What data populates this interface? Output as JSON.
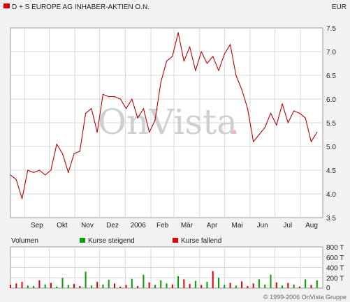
{
  "header": {
    "title": "D + S EUROPE AG INHABER-AKTIEN O.N.",
    "currency": "EUR",
    "legend_swatch_color": "#e00000"
  },
  "watermark": "OnVista",
  "copyright": "© 1999-2006 OnVista Gruppe",
  "volume_legend": {
    "volume_label": "Volumen",
    "rising_label": "Kurse steigend",
    "falling_label": "Kurse fallend",
    "rising_color": "#00a000",
    "falling_color": "#e00000"
  },
  "chart_data": [
    {
      "type": "line",
      "series": [
        {
          "color": "#c00000",
          "x": [
            "2005-08-15",
            "2005-08-22",
            "2005-08-29",
            "2005-09-05",
            "2005-09-12",
            "2005-09-19",
            "2005-09-26",
            "2005-10-03",
            "2005-10-10",
            "2005-10-17",
            "2005-10-24",
            "2005-10-31",
            "2005-11-07",
            "2005-11-14",
            "2005-11-21",
            "2005-11-28",
            "2005-12-05",
            "2005-12-12",
            "2005-12-19",
            "2005-12-26",
            "2006-01-02",
            "2006-01-09",
            "2006-01-16",
            "2006-01-23",
            "2006-01-30",
            "2006-02-06",
            "2006-02-13",
            "2006-02-20",
            "2006-02-27",
            "2006-03-06",
            "2006-03-13",
            "2006-03-20",
            "2006-03-27",
            "2006-04-03",
            "2006-04-10",
            "2006-04-17",
            "2006-04-24",
            "2006-05-01",
            "2006-05-08",
            "2006-05-15",
            "2006-05-22",
            "2006-05-29",
            "2006-06-05",
            "2006-06-12",
            "2006-06-19",
            "2006-06-26",
            "2006-07-03",
            "2006-07-10",
            "2006-07-17",
            "2006-07-24",
            "2006-07-31",
            "2006-08-07",
            "2006-08-14",
            "2006-08-21"
          ],
          "y": [
            4.4,
            4.3,
            3.9,
            4.5,
            4.45,
            4.5,
            4.4,
            4.5,
            5.05,
            4.85,
            4.45,
            4.85,
            4.9,
            5.7,
            5.8,
            5.3,
            6.1,
            6.05,
            6.05,
            6.0,
            5.8,
            6.0,
            5.6,
            5.8,
            5.3,
            5.55,
            6.35,
            6.8,
            6.9,
            7.4,
            6.8,
            7.1,
            6.6,
            7.0,
            6.75,
            6.9,
            6.6,
            6.95,
            7.15,
            6.5,
            6.2,
            5.8,
            5.1,
            5.25,
            5.4,
            5.7,
            5.45,
            5.9,
            5.5,
            5.75,
            5.7,
            5.6,
            5.1,
            5.3
          ]
        }
      ],
      "xticks": [
        "Sep",
        "Okt",
        "Nov",
        "Dez",
        "2006",
        "Feb",
        "Mär",
        "Apr",
        "Mai",
        "Jun",
        "Jul",
        "Aug"
      ],
      "yticks": [
        "3.5",
        "4.0",
        "4.5",
        "5.0",
        "5.5",
        "6.0",
        "6.5",
        "7.0",
        "7.5"
      ],
      "ylim": [
        3.5,
        7.5
      ],
      "grid": true
    },
    {
      "type": "bar",
      "volume_values": [
        60,
        90,
        120,
        50,
        40,
        150,
        70,
        100,
        30,
        200,
        60,
        80,
        40,
        320,
        50,
        120,
        70,
        160,
        90,
        30,
        60,
        180,
        40,
        260,
        110,
        60,
        150,
        90,
        70,
        230,
        170,
        80,
        140,
        60,
        120,
        330,
        200,
        60,
        100,
        50,
        130,
        40,
        90,
        170,
        70,
        260,
        110,
        50,
        100,
        70,
        30,
        170,
        60,
        150
      ],
      "volume_direction": [
        "f",
        "f",
        "f",
        "r",
        "r",
        "f",
        "r",
        "f",
        "r",
        "r",
        "r",
        "f",
        "f",
        "r",
        "r",
        "f",
        "r",
        "r",
        "f",
        "f",
        "f",
        "r",
        "f",
        "r",
        "f",
        "r",
        "r",
        "r",
        "f",
        "r",
        "f",
        "f",
        "r",
        "f",
        "r",
        "f",
        "r",
        "r",
        "f",
        "r",
        "f",
        "f",
        "f",
        "r",
        "r",
        "r",
        "f",
        "r",
        "f",
        "r",
        "f",
        "r",
        "f",
        "r"
      ],
      "yticks": [
        "0",
        "200 T",
        "400 T",
        "600 T",
        "800 T"
      ],
      "ylim": [
        0,
        800
      ],
      "grid": true
    }
  ]
}
